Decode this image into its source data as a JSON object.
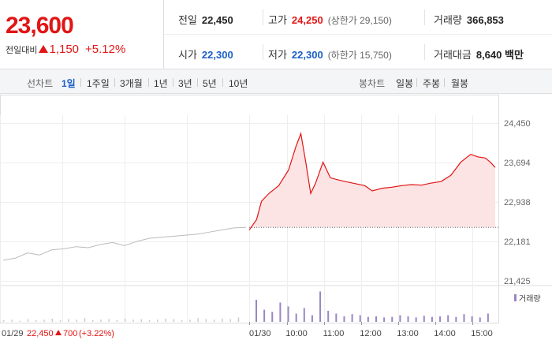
{
  "summary": {
    "price": "23,600",
    "change_label": "전일대비",
    "change": "1,150",
    "change_pct": "+5.12%"
  },
  "stats": {
    "prev_close_label": "전일",
    "prev_close": "22,450",
    "high_label": "고가",
    "high": "24,250",
    "upper_limit": "(상한가 29,150)",
    "volume_label": "거래량",
    "volume": "366,853",
    "open_label": "시가",
    "open": "22,300",
    "low_label": "저가",
    "low": "22,300",
    "lower_limit": "(하한가 15,750)",
    "amount_label": "거래대금",
    "amount": "8,640 백만"
  },
  "line_tabs": {
    "label": "선차트",
    "items": [
      "1일",
      "1주일",
      "3개월",
      "1년",
      "3년",
      "5년",
      "10년"
    ],
    "active": 0
  },
  "candle_tabs": {
    "label": "봉차트",
    "items": [
      "일봉",
      "주봉",
      "월봉"
    ]
  },
  "colors": {
    "up": "#e21515",
    "down": "#1b5ec7",
    "prev_day": "#bbbbbb",
    "volume_today": "#9a86c4",
    "volume_prev": "#cccccc"
  },
  "chart_data": {
    "type": "line",
    "y_ticks": [
      "24,450",
      "23,694",
      "22,938",
      "22,181",
      "21,425"
    ],
    "y_range": [
      21425,
      24450
    ],
    "reference_price": 22450,
    "x_ticks": [
      "01/30",
      "10:00",
      "11:00",
      "12:00",
      "13:00",
      "14:00",
      "15:00"
    ],
    "prev_day": {
      "date": "01/29",
      "close": "22,450",
      "change": "700",
      "change_pct": "(+3.22%)",
      "points": [
        [
          0,
          21820
        ],
        [
          0.05,
          21860
        ],
        [
          0.1,
          21960
        ],
        [
          0.15,
          21920
        ],
        [
          0.2,
          22020
        ],
        [
          0.25,
          22040
        ],
        [
          0.3,
          22080
        ],
        [
          0.35,
          22060
        ],
        [
          0.4,
          22120
        ],
        [
          0.45,
          22160
        ],
        [
          0.5,
          22100
        ],
        [
          0.55,
          22180
        ],
        [
          0.6,
          22240
        ],
        [
          0.65,
          22260
        ],
        [
          0.7,
          22280
        ],
        [
          0.75,
          22300
        ],
        [
          0.8,
          22320
        ],
        [
          0.85,
          22360
        ],
        [
          0.9,
          22400
        ],
        [
          0.95,
          22440
        ],
        [
          1,
          22450
        ]
      ]
    },
    "today": {
      "points": [
        [
          0,
          22400
        ],
        [
          0.03,
          22600
        ],
        [
          0.05,
          22950
        ],
        [
          0.08,
          23100
        ],
        [
          0.12,
          23250
        ],
        [
          0.16,
          23550
        ],
        [
          0.19,
          24000
        ],
        [
          0.21,
          24250
        ],
        [
          0.23,
          23700
        ],
        [
          0.25,
          23100
        ],
        [
          0.27,
          23300
        ],
        [
          0.3,
          23700
        ],
        [
          0.33,
          23400
        ],
        [
          0.37,
          23350
        ],
        [
          0.42,
          23300
        ],
        [
          0.47,
          23250
        ],
        [
          0.5,
          23150
        ],
        [
          0.54,
          23200
        ],
        [
          0.58,
          23220
        ],
        [
          0.62,
          23250
        ],
        [
          0.66,
          23270
        ],
        [
          0.7,
          23260
        ],
        [
          0.74,
          23300
        ],
        [
          0.78,
          23330
        ],
        [
          0.82,
          23450
        ],
        [
          0.86,
          23700
        ],
        [
          0.9,
          23850
        ],
        [
          0.93,
          23800
        ],
        [
          0.96,
          23780
        ],
        [
          0.98,
          23700
        ],
        [
          1,
          23600
        ]
      ]
    },
    "volume_legend": "거래량",
    "volume_prev": [
      3,
      4,
      2,
      5,
      3,
      4,
      6,
      3,
      5,
      4,
      7,
      3,
      4,
      5,
      3,
      6,
      4,
      5,
      3,
      4,
      6,
      5,
      3,
      4,
      7,
      5,
      4,
      6,
      5,
      8
    ],
    "volume_today": [
      40,
      22,
      18,
      35,
      28,
      15,
      25,
      12,
      55,
      20,
      15,
      10,
      14,
      12,
      9,
      10,
      8,
      9,
      12,
      10,
      8,
      11,
      9,
      10,
      12,
      9,
      14,
      10,
      8,
      15
    ]
  }
}
